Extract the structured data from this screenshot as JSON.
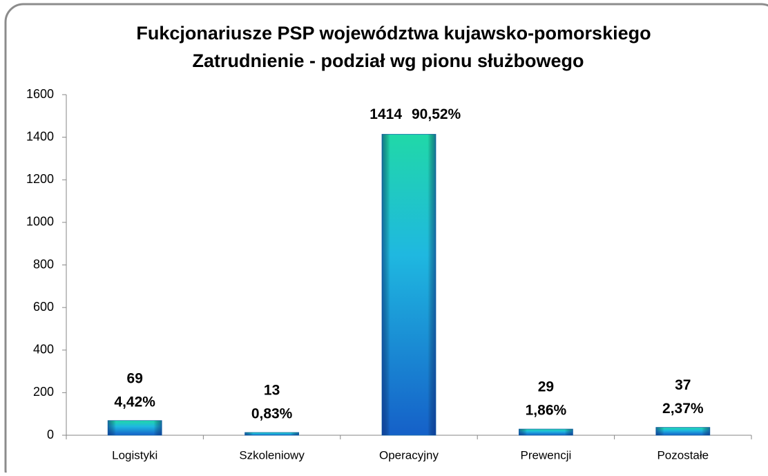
{
  "chart_data": {
    "type": "bar",
    "title": "Fukcjonariusze PSP województwa kujawsko-pomorskiego",
    "subtitle": "Zatrudnienie - podział wg pionu służbowego",
    "categories": [
      "Logistyki",
      "Szkoleniowy",
      "Operacyjny",
      "Prewencji",
      "Pozostałe"
    ],
    "values": [
      69,
      13,
      1414,
      29,
      37
    ],
    "percentages": [
      4.42,
      0.83,
      90.52,
      1.86,
      2.37
    ],
    "percentage_labels": [
      "4,42%",
      "0,83%",
      "90,52%",
      "1,86%",
      "2,37%"
    ],
    "color": "#1fb8e0",
    "ylim": [
      0,
      1600
    ],
    "yticks": [
      0,
      200,
      400,
      600,
      800,
      1000,
      1200,
      1400,
      1600
    ],
    "grid": false
  }
}
